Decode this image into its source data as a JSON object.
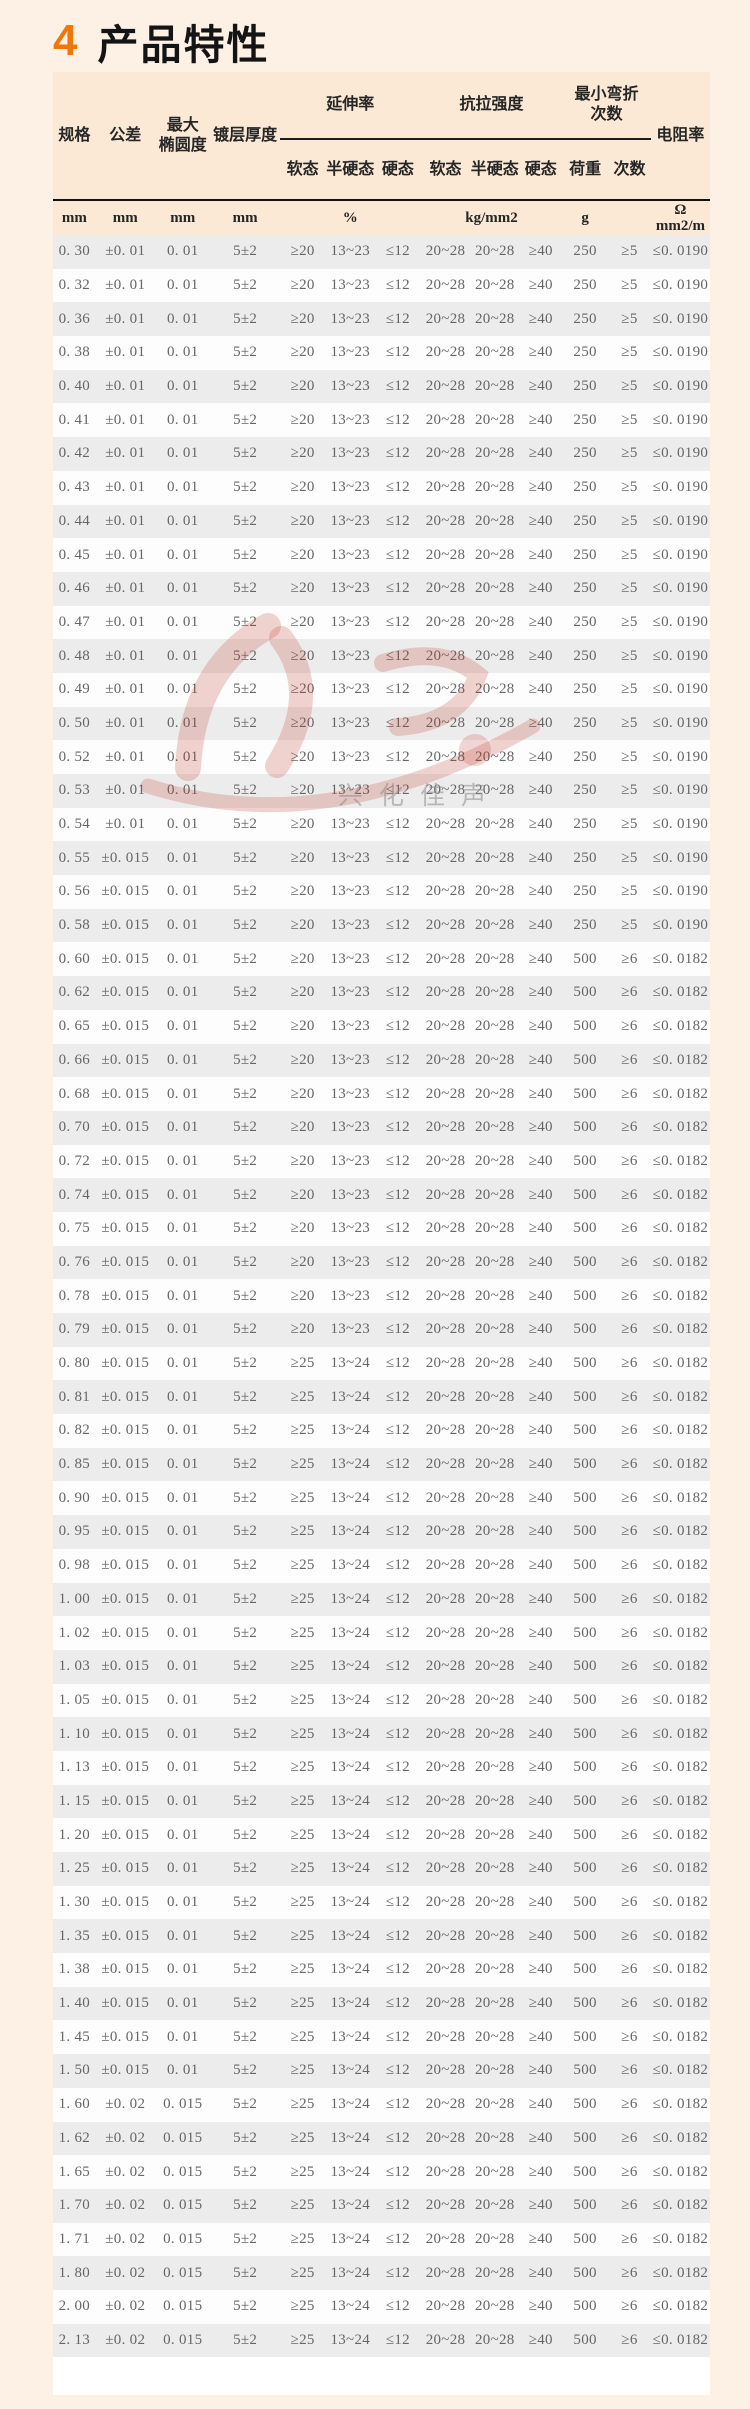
{
  "page": {
    "section_number": "4",
    "title": "产品特性"
  },
  "colors": {
    "accent_orange": "#f0780a",
    "page_bg": "#fdf1e6",
    "header_bg": "#fbe9d5",
    "row_alt_bg": "#ececec",
    "watermark_red": "#c0392b"
  },
  "watermark": {
    "text": "兴化佳声"
  },
  "table": {
    "headers": {
      "spec": "规格",
      "tolerance": "公差",
      "max_ovality_1": "最大",
      "max_ovality_2": "椭圆度",
      "coating_thickness": "镀层厚度",
      "elongation": "延伸率",
      "tensile_strength": "抗拉强度",
      "min_bend_1": "最小弯折",
      "min_bend_2": "次数",
      "resistivity": "电阻率"
    },
    "sub_headers": [
      "软态",
      "半硬态",
      "硬态",
      "软态",
      "半硬态",
      "硬态",
      "荷重",
      "次数"
    ],
    "units": [
      "mm",
      "mm",
      "mm",
      "mm",
      "%",
      "kg/mm2",
      "g",
      "",
      "Ω",
      "mm2/m"
    ],
    "rows": [
      [
        "0. 30",
        "±0. 01",
        "0. 01",
        "5±2",
        "≥20",
        "13~23",
        "≤12",
        "20~28",
        "20~28",
        "≥40",
        "250",
        "≥5",
        "≤0. 0190"
      ],
      [
        "0. 32",
        "±0. 01",
        "0. 01",
        "5±2",
        "≥20",
        "13~23",
        "≤12",
        "20~28",
        "20~28",
        "≥40",
        "250",
        "≥5",
        "≤0. 0190"
      ],
      [
        "0. 36",
        "±0. 01",
        "0. 01",
        "5±2",
        "≥20",
        "13~23",
        "≤12",
        "20~28",
        "20~28",
        "≥40",
        "250",
        "≥5",
        "≤0. 0190"
      ],
      [
        "0. 38",
        "±0. 01",
        "0. 01",
        "5±2",
        "≥20",
        "13~23",
        "≤12",
        "20~28",
        "20~28",
        "≥40",
        "250",
        "≥5",
        "≤0. 0190"
      ],
      [
        "0. 40",
        "±0. 01",
        "0. 01",
        "5±2",
        "≥20",
        "13~23",
        "≤12",
        "20~28",
        "20~28",
        "≥40",
        "250",
        "≥5",
        "≤0. 0190"
      ],
      [
        "0. 41",
        "±0. 01",
        "0. 01",
        "5±2",
        "≥20",
        "13~23",
        "≤12",
        "20~28",
        "20~28",
        "≥40",
        "250",
        "≥5",
        "≤0. 0190"
      ],
      [
        "0. 42",
        "±0. 01",
        "0. 01",
        "5±2",
        "≥20",
        "13~23",
        "≤12",
        "20~28",
        "20~28",
        "≥40",
        "250",
        "≥5",
        "≤0. 0190"
      ],
      [
        "0. 43",
        "±0. 01",
        "0. 01",
        "5±2",
        "≥20",
        "13~23",
        "≤12",
        "20~28",
        "20~28",
        "≥40",
        "250",
        "≥5",
        "≤0. 0190"
      ],
      [
        "0. 44",
        "±0. 01",
        "0. 01",
        "5±2",
        "≥20",
        "13~23",
        "≤12",
        "20~28",
        "20~28",
        "≥40",
        "250",
        "≥5",
        "≤0. 0190"
      ],
      [
        "0. 45",
        "±0. 01",
        "0. 01",
        "5±2",
        "≥20",
        "13~23",
        "≤12",
        "20~28",
        "20~28",
        "≥40",
        "250",
        "≥5",
        "≤0. 0190"
      ],
      [
        "0. 46",
        "±0. 01",
        "0. 01",
        "5±2",
        "≥20",
        "13~23",
        "≤12",
        "20~28",
        "20~28",
        "≥40",
        "250",
        "≥5",
        "≤0. 0190"
      ],
      [
        "0. 47",
        "±0. 01",
        "0. 01",
        "5±2",
        "≥20",
        "13~23",
        "≤12",
        "20~28",
        "20~28",
        "≥40",
        "250",
        "≥5",
        "≤0. 0190"
      ],
      [
        "0. 48",
        "±0. 01",
        "0. 01",
        "5±2",
        "≥20",
        "13~23",
        "≤12",
        "20~28",
        "20~28",
        "≥40",
        "250",
        "≥5",
        "≤0. 0190"
      ],
      [
        "0. 49",
        "±0. 01",
        "0. 01",
        "5±2",
        "≥20",
        "13~23",
        "≤12",
        "20~28",
        "20~28",
        "≥40",
        "250",
        "≥5",
        "≤0. 0190"
      ],
      [
        "0. 50",
        "±0. 01",
        "0. 01",
        "5±2",
        "≥20",
        "13~23",
        "≤12",
        "20~28",
        "20~28",
        "≥40",
        "250",
        "≥5",
        "≤0. 0190"
      ],
      [
        "0. 52",
        "±0. 01",
        "0. 01",
        "5±2",
        "≥20",
        "13~23",
        "≤12",
        "20~28",
        "20~28",
        "≥40",
        "250",
        "≥5",
        "≤0. 0190"
      ],
      [
        "0. 53",
        "±0. 01",
        "0. 01",
        "5±2",
        "≥20",
        "13~23",
        "≤12",
        "20~28",
        "20~28",
        "≥40",
        "250",
        "≥5",
        "≤0. 0190"
      ],
      [
        "0. 54",
        "±0. 01",
        "0. 01",
        "5±2",
        "≥20",
        "13~23",
        "≤12",
        "20~28",
        "20~28",
        "≥40",
        "250",
        "≥5",
        "≤0. 0190"
      ],
      [
        "0. 55",
        "±0. 015",
        "0. 01",
        "5±2",
        "≥20",
        "13~23",
        "≤12",
        "20~28",
        "20~28",
        "≥40",
        "250",
        "≥5",
        "≤0. 0190"
      ],
      [
        "0. 56",
        "±0. 015",
        "0. 01",
        "5±2",
        "≥20",
        "13~23",
        "≤12",
        "20~28",
        "20~28",
        "≥40",
        "250",
        "≥5",
        "≤0. 0190"
      ],
      [
        "0. 58",
        "±0. 015",
        "0. 01",
        "5±2",
        "≥20",
        "13~23",
        "≤12",
        "20~28",
        "20~28",
        "≥40",
        "250",
        "≥5",
        "≤0. 0190"
      ],
      [
        "0. 60",
        "±0. 015",
        "0. 01",
        "5±2",
        "≥20",
        "13~23",
        "≤12",
        "20~28",
        "20~28",
        "≥40",
        "500",
        "≥6",
        "≤0. 0182"
      ],
      [
        "0. 62",
        "±0. 015",
        "0. 01",
        "5±2",
        "≥20",
        "13~23",
        "≤12",
        "20~28",
        "20~28",
        "≥40",
        "500",
        "≥6",
        "≤0. 0182"
      ],
      [
        "0. 65",
        "±0. 015",
        "0. 01",
        "5±2",
        "≥20",
        "13~23",
        "≤12",
        "20~28",
        "20~28",
        "≥40",
        "500",
        "≥6",
        "≤0. 0182"
      ],
      [
        "0. 66",
        "±0. 015",
        "0. 01",
        "5±2",
        "≥20",
        "13~23",
        "≤12",
        "20~28",
        "20~28",
        "≥40",
        "500",
        "≥6",
        "≤0. 0182"
      ],
      [
        "0. 68",
        "±0. 015",
        "0. 01",
        "5±2",
        "≥20",
        "13~23",
        "≤12",
        "20~28",
        "20~28",
        "≥40",
        "500",
        "≥6",
        "≤0. 0182"
      ],
      [
        "0. 70",
        "±0. 015",
        "0. 01",
        "5±2",
        "≥20",
        "13~23",
        "≤12",
        "20~28",
        "20~28",
        "≥40",
        "500",
        "≥6",
        "≤0. 0182"
      ],
      [
        "0. 72",
        "±0. 015",
        "0. 01",
        "5±2",
        "≥20",
        "13~23",
        "≤12",
        "20~28",
        "20~28",
        "≥40",
        "500",
        "≥6",
        "≤0. 0182"
      ],
      [
        "0. 74",
        "±0. 015",
        "0. 01",
        "5±2",
        "≥20",
        "13~23",
        "≤12",
        "20~28",
        "20~28",
        "≥40",
        "500",
        "≥6",
        "≤0. 0182"
      ],
      [
        "0. 75",
        "±0. 015",
        "0. 01",
        "5±2",
        "≥20",
        "13~23",
        "≤12",
        "20~28",
        "20~28",
        "≥40",
        "500",
        "≥6",
        "≤0. 0182"
      ],
      [
        "0. 76",
        "±0. 015",
        "0. 01",
        "5±2",
        "≥20",
        "13~23",
        "≤12",
        "20~28",
        "20~28",
        "≥40",
        "500",
        "≥6",
        "≤0. 0182"
      ],
      [
        "0. 78",
        "±0. 015",
        "0. 01",
        "5±2",
        "≥20",
        "13~23",
        "≤12",
        "20~28",
        "20~28",
        "≥40",
        "500",
        "≥6",
        "≤0. 0182"
      ],
      [
        "0. 79",
        "±0. 015",
        "0. 01",
        "5±2",
        "≥20",
        "13~23",
        "≤12",
        "20~28",
        "20~28",
        "≥40",
        "500",
        "≥6",
        "≤0. 0182"
      ],
      [
        "0. 80",
        "±0. 015",
        "0. 01",
        "5±2",
        "≥25",
        "13~24",
        "≤12",
        "20~28",
        "20~28",
        "≥40",
        "500",
        "≥6",
        "≤0. 0182"
      ],
      [
        "0. 81",
        "±0. 015",
        "0. 01",
        "5±2",
        "≥25",
        "13~24",
        "≤12",
        "20~28",
        "20~28",
        "≥40",
        "500",
        "≥6",
        "≤0. 0182"
      ],
      [
        "0. 82",
        "±0. 015",
        "0. 01",
        "5±2",
        "≥25",
        "13~24",
        "≤12",
        "20~28",
        "20~28",
        "≥40",
        "500",
        "≥6",
        "≤0. 0182"
      ],
      [
        "0. 85",
        "±0. 015",
        "0. 01",
        "5±2",
        "≥25",
        "13~24",
        "≤12",
        "20~28",
        "20~28",
        "≥40",
        "500",
        "≥6",
        "≤0. 0182"
      ],
      [
        "0. 90",
        "±0. 015",
        "0. 01",
        "5±2",
        "≥25",
        "13~24",
        "≤12",
        "20~28",
        "20~28",
        "≥40",
        "500",
        "≥6",
        "≤0. 0182"
      ],
      [
        "0. 95",
        "±0. 015",
        "0. 01",
        "5±2",
        "≥25",
        "13~24",
        "≤12",
        "20~28",
        "20~28",
        "≥40",
        "500",
        "≥6",
        "≤0. 0182"
      ],
      [
        "0. 98",
        "±0. 015",
        "0. 01",
        "5±2",
        "≥25",
        "13~24",
        "≤12",
        "20~28",
        "20~28",
        "≥40",
        "500",
        "≥6",
        "≤0. 0182"
      ],
      [
        "1. 00",
        "±0. 015",
        "0. 01",
        "5±2",
        "≥25",
        "13~24",
        "≤12",
        "20~28",
        "20~28",
        "≥40",
        "500",
        "≥6",
        "≤0. 0182"
      ],
      [
        "1. 02",
        "±0. 015",
        "0. 01",
        "5±2",
        "≥25",
        "13~24",
        "≤12",
        "20~28",
        "20~28",
        "≥40",
        "500",
        "≥6",
        "≤0. 0182"
      ],
      [
        "1. 03",
        "±0. 015",
        "0. 01",
        "5±2",
        "≥25",
        "13~24",
        "≤12",
        "20~28",
        "20~28",
        "≥40",
        "500",
        "≥6",
        "≤0. 0182"
      ],
      [
        "1. 05",
        "±0. 015",
        "0. 01",
        "5±2",
        "≥25",
        "13~24",
        "≤12",
        "20~28",
        "20~28",
        "≥40",
        "500",
        "≥6",
        "≤0. 0182"
      ],
      [
        "1. 10",
        "±0. 015",
        "0. 01",
        "5±2",
        "≥25",
        "13~24",
        "≤12",
        "20~28",
        "20~28",
        "≥40",
        "500",
        "≥6",
        "≤0. 0182"
      ],
      [
        "1. 13",
        "±0. 015",
        "0. 01",
        "5±2",
        "≥25",
        "13~24",
        "≤12",
        "20~28",
        "20~28",
        "≥40",
        "500",
        "≥6",
        "≤0. 0182"
      ],
      [
        "1. 15",
        "±0. 015",
        "0. 01",
        "5±2",
        "≥25",
        "13~24",
        "≤12",
        "20~28",
        "20~28",
        "≥40",
        "500",
        "≥6",
        "≤0. 0182"
      ],
      [
        "1. 20",
        "±0. 015",
        "0. 01",
        "5±2",
        "≥25",
        "13~24",
        "≤12",
        "20~28",
        "20~28",
        "≥40",
        "500",
        "≥6",
        "≤0. 0182"
      ],
      [
        "1. 25",
        "±0. 015",
        "0. 01",
        "5±2",
        "≥25",
        "13~24",
        "≤12",
        "20~28",
        "20~28",
        "≥40",
        "500",
        "≥6",
        "≤0. 0182"
      ],
      [
        "1. 30",
        "±0. 015",
        "0. 01",
        "5±2",
        "≥25",
        "13~24",
        "≤12",
        "20~28",
        "20~28",
        "≥40",
        "500",
        "≥6",
        "≤0. 0182"
      ],
      [
        "1. 35",
        "±0. 015",
        "0. 01",
        "5±2",
        "≥25",
        "13~24",
        "≤12",
        "20~28",
        "20~28",
        "≥40",
        "500",
        "≥6",
        "≤0. 0182"
      ],
      [
        "1. 38",
        "±0. 015",
        "0. 01",
        "5±2",
        "≥25",
        "13~24",
        "≤12",
        "20~28",
        "20~28",
        "≥40",
        "500",
        "≥6",
        "≤0. 0182"
      ],
      [
        "1. 40",
        "±0. 015",
        "0. 01",
        "5±2",
        "≥25",
        "13~24",
        "≤12",
        "20~28",
        "20~28",
        "≥40",
        "500",
        "≥6",
        "≤0. 0182"
      ],
      [
        "1. 45",
        "±0. 015",
        "0. 01",
        "5±2",
        "≥25",
        "13~24",
        "≤12",
        "20~28",
        "20~28",
        "≥40",
        "500",
        "≥6",
        "≤0. 0182"
      ],
      [
        "1. 50",
        "±0. 015",
        "0. 01",
        "5±2",
        "≥25",
        "13~24",
        "≤12",
        "20~28",
        "20~28",
        "≥40",
        "500",
        "≥6",
        "≤0. 0182"
      ],
      [
        "1. 60",
        "±0. 02",
        "0. 015",
        "5±2",
        "≥25",
        "13~24",
        "≤12",
        "20~28",
        "20~28",
        "≥40",
        "500",
        "≥6",
        "≤0. 0182"
      ],
      [
        "1. 62",
        "±0. 02",
        "0. 015",
        "5±2",
        "≥25",
        "13~24",
        "≤12",
        "20~28",
        "20~28",
        "≥40",
        "500",
        "≥6",
        "≤0. 0182"
      ],
      [
        "1. 65",
        "±0. 02",
        "0. 015",
        "5±2",
        "≥25",
        "13~24",
        "≤12",
        "20~28",
        "20~28",
        "≥40",
        "500",
        "≥6",
        "≤0. 0182"
      ],
      [
        "1. 70",
        "±0. 02",
        "0. 015",
        "5±2",
        "≥25",
        "13~24",
        "≤12",
        "20~28",
        "20~28",
        "≥40",
        "500",
        "≥6",
        "≤0. 0182"
      ],
      [
        "1. 71",
        "±0. 02",
        "0. 015",
        "5±2",
        "≥25",
        "13~24",
        "≤12",
        "20~28",
        "20~28",
        "≥40",
        "500",
        "≥6",
        "≤0. 0182"
      ],
      [
        "1. 80",
        "±0. 02",
        "0. 015",
        "5±2",
        "≥25",
        "13~24",
        "≤12",
        "20~28",
        "20~28",
        "≥40",
        "500",
        "≥6",
        "≤0. 0182"
      ],
      [
        "2. 00",
        "±0. 02",
        "0. 015",
        "5±2",
        "≥25",
        "13~24",
        "≤12",
        "20~28",
        "20~28",
        "≥40",
        "500",
        "≥6",
        "≤0. 0182"
      ],
      [
        "2. 13",
        "±0. 02",
        "0. 015",
        "5±2",
        "≥25",
        "13~24",
        "≤12",
        "20~28",
        "20~28",
        "≥40",
        "500",
        "≥6",
        "≤0. 0182"
      ]
    ]
  }
}
